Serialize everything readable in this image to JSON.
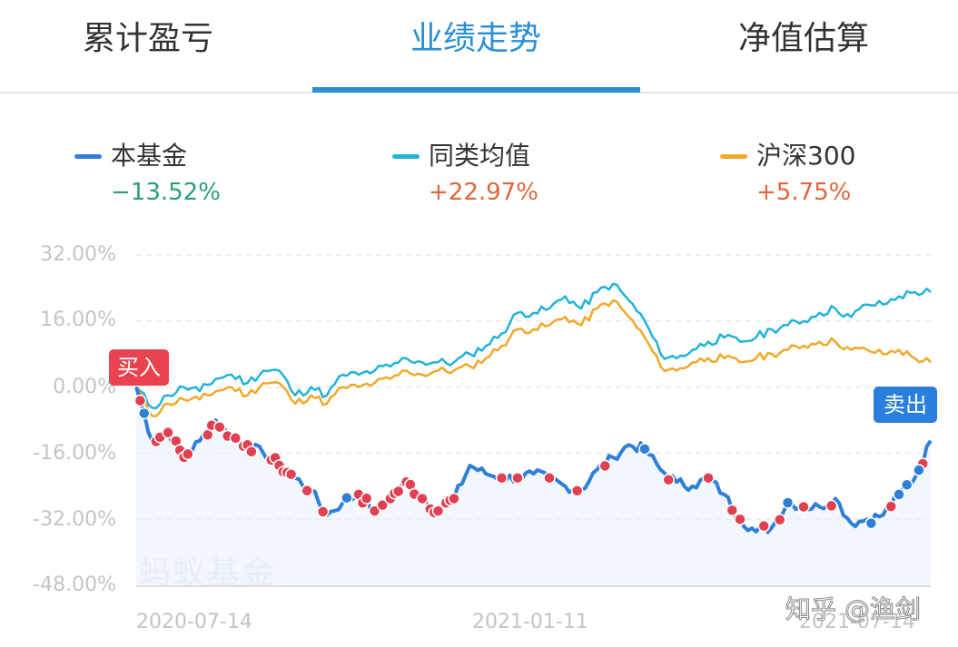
{
  "tabs": [
    {
      "label": "累计盈亏",
      "active": false
    },
    {
      "label": "业绩走势",
      "active": true
    },
    {
      "label": "净值估算",
      "active": false
    }
  ],
  "legend": [
    {
      "name": "本基金",
      "value": "−13.52%",
      "color": "#2f7fd6",
      "value_color": "#2a9d7f"
    },
    {
      "name": "同类均值",
      "value": "+22.97%",
      "color": "#22b3d8",
      "value_color": "#e0663a"
    },
    {
      "name": "沪深300",
      "value": "+5.75%",
      "color": "#f0a929",
      "value_color": "#e0663a"
    }
  ],
  "badges": {
    "buy": {
      "label": "买入",
      "color": "#e8434f"
    },
    "sell": {
      "label": "卖出",
      "color": "#2b7fdc"
    }
  },
  "watermark": "蚂蚁基金",
  "credit": "知乎 @渔剑",
  "colors": {
    "accent": "#2b8fd4",
    "fund_line": "#2f7fd6",
    "peer_line": "#22b3d8",
    "index_line": "#f0a929",
    "buy_dot": "#e0404f",
    "sell_dot": "#2f7fd6",
    "grid": "#e8e8e8",
    "axis_text": "#c4c4c4"
  },
  "chart_data": {
    "type": "line",
    "title": "业绩走势",
    "xlabel": "",
    "ylabel": "",
    "ylim": [
      -48,
      32
    ],
    "yticks": [
      "32.00%",
      "16.00%",
      "0.00%",
      "-16.00%",
      "-32.00%",
      "-48.00%"
    ],
    "ytick_values": [
      32,
      16,
      0,
      -16,
      -32,
      -48
    ],
    "xticks": [
      "2020-07-14",
      "2021-01-11",
      "2021-07-14"
    ],
    "grid": true,
    "legend_position": "top",
    "x": [
      0,
      2,
      4,
      6,
      8,
      10,
      12,
      14,
      16,
      18,
      20,
      22,
      24,
      26,
      28,
      30,
      32,
      34,
      36,
      38,
      40,
      42,
      44,
      46,
      48,
      50,
      52,
      54,
      56,
      58,
      60,
      62,
      64,
      66,
      68,
      70,
      72,
      74,
      76,
      78,
      80,
      82,
      84,
      86,
      88,
      90,
      92,
      94,
      96,
      98,
      100
    ],
    "series": [
      {
        "name": "本基金",
        "final": -13.52,
        "values": [
          0,
          -13,
          -11,
          -17,
          -13,
          -8,
          -12,
          -14,
          -16,
          -19,
          -22,
          -25,
          -31,
          -28,
          -26,
          -30,
          -27,
          -23,
          -27,
          -30,
          -27,
          -19,
          -21,
          -22,
          -22,
          -21,
          -22,
          -24,
          -25,
          -20,
          -17,
          -14,
          -15,
          -20,
          -23,
          -24,
          -22,
          -26,
          -32,
          -35,
          -34,
          -28,
          -29,
          -29,
          -27,
          -33,
          -32,
          -31,
          -26,
          -22,
          -13
        ]
      },
      {
        "name": "同类均值",
        "final": 22.97,
        "values": [
          0,
          -5,
          -2,
          0,
          -1,
          2,
          3,
          1,
          4,
          4,
          -2,
          0,
          -2,
          3,
          3,
          4,
          5,
          7,
          6,
          6,
          6,
          8,
          10,
          13,
          18,
          18,
          19,
          22,
          19,
          23,
          25,
          21,
          16,
          8,
          7,
          9,
          11,
          12,
          11,
          12,
          14,
          15,
          16,
          18,
          19,
          17,
          20,
          20,
          22,
          23,
          23
        ]
      },
      {
        "name": "沪深300",
        "final": 5.75,
        "values": [
          0,
          -7,
          -4,
          -3,
          -3,
          -1,
          0,
          -2,
          1,
          1,
          -4,
          -2,
          -4,
          0,
          0,
          1,
          2,
          4,
          3,
          4,
          4,
          5,
          7,
          10,
          14,
          14,
          15,
          17,
          15,
          19,
          21,
          17,
          12,
          5,
          4,
          6,
          7,
          7,
          6,
          7,
          8,
          9,
          10,
          11,
          11,
          9,
          9,
          8,
          9,
          7,
          6
        ]
      }
    ],
    "annotations": [
      {
        "label": "买入",
        "x": 0
      },
      {
        "label": "卖出",
        "x": 98
      }
    ]
  }
}
